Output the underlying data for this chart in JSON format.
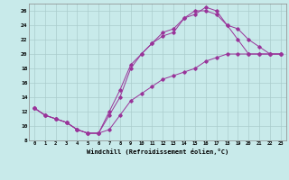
{
  "xlabel": "Windchill (Refroidissement éolien,°C)",
  "background_color": "#c8eaea",
  "line_color": "#993399",
  "grid_color": "#aacccc",
  "xlim": [
    -0.5,
    23.5
  ],
  "ylim": [
    8,
    27
  ],
  "xticks": [
    0,
    1,
    2,
    3,
    4,
    5,
    6,
    7,
    8,
    9,
    10,
    11,
    12,
    13,
    14,
    15,
    16,
    17,
    18,
    19,
    20,
    21,
    22,
    23
  ],
  "yticks": [
    8,
    10,
    12,
    14,
    16,
    18,
    20,
    22,
    24,
    26
  ],
  "line1_x": [
    0,
    1,
    2,
    3,
    4,
    5,
    6,
    7,
    8,
    9,
    10,
    11,
    12,
    13,
    14,
    15,
    16,
    17,
    18,
    19,
    20,
    21,
    22,
    23
  ],
  "line1_y": [
    12.5,
    11.5,
    11.0,
    10.5,
    9.5,
    9.0,
    9.0,
    12.0,
    15.0,
    18.5,
    20.0,
    21.5,
    23.0,
    23.5,
    25.0,
    26.0,
    26.0,
    25.5,
    24.0,
    23.5,
    22.0,
    21.0,
    20.0,
    20.0
  ],
  "line2_x": [
    0,
    1,
    2,
    3,
    4,
    5,
    6,
    7,
    8,
    9,
    10,
    11,
    12,
    13,
    14,
    15,
    16,
    17,
    18,
    19,
    20,
    21,
    22,
    23
  ],
  "line2_y": [
    12.5,
    11.5,
    11.0,
    10.5,
    9.5,
    9.0,
    9.0,
    11.5,
    14.0,
    18.0,
    20.0,
    21.5,
    22.5,
    23.0,
    25.0,
    25.5,
    26.5,
    26.0,
    24.0,
    22.0,
    20.0,
    20.0,
    20.0,
    20.0
  ],
  "line3_x": [
    0,
    1,
    2,
    3,
    4,
    5,
    6,
    7,
    8,
    9,
    10,
    11,
    12,
    13,
    14,
    15,
    16,
    17,
    18,
    19,
    20,
    21,
    22,
    23
  ],
  "line3_y": [
    12.5,
    11.5,
    11.0,
    10.5,
    9.5,
    9.0,
    9.0,
    9.5,
    11.5,
    13.5,
    14.5,
    15.5,
    16.5,
    17.0,
    17.5,
    18.0,
    19.0,
    19.5,
    20.0,
    20.0,
    20.0,
    20.0,
    20.0,
    20.0
  ]
}
